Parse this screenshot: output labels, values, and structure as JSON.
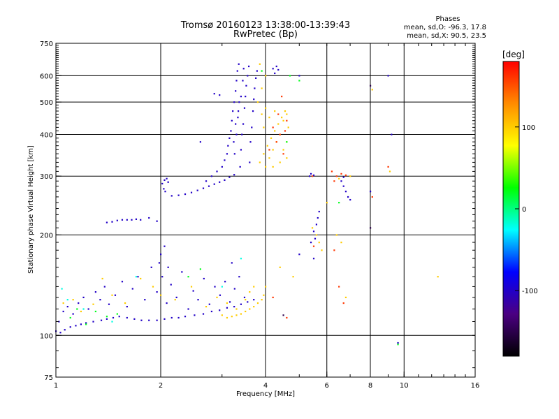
{
  "header": {
    "title_line1": "Tromsø 20160123 13:38:00-13:39:43",
    "title_line2": "RwPretec (Bp)"
  },
  "phases": {
    "title": "Phases",
    "line_o": "mean, sd,O: -96.3, 17.8",
    "line_x": "mean, sd,X:  90.5, 23.5"
  },
  "colorbar": {
    "unit": "[deg]",
    "range": [
      -180,
      180
    ],
    "ticks": [
      {
        "value": 100,
        "label": "100"
      },
      {
        "value": 0,
        "label": "0"
      },
      {
        "value": -100,
        "label": "-100"
      }
    ],
    "colors": [
      "#000000",
      "#4b0082",
      "#0000ff",
      "#00ffff",
      "#00ff00",
      "#ffff00",
      "#ff8c00",
      "#ff0000"
    ]
  },
  "chart_data": {
    "type": "scatter",
    "title": "Tromsø 20160123 13:38:00-13:39:43",
    "subtitle": "RwPretec (Bp)",
    "xlabel": "Frequency [MHz]",
    "ylabel": "Stationary phase Virtual Height [km]",
    "x_scale": "log",
    "y_scale": "log",
    "xlim": [
      1,
      16
    ],
    "ylim": [
      75,
      750
    ],
    "x_ticks": [
      {
        "value": 1,
        "label": "1"
      },
      {
        "value": 2,
        "label": "2"
      },
      {
        "value": 4,
        "label": "4"
      },
      {
        "value": 6,
        "label": "6"
      },
      {
        "value": 8,
        "label": "8"
      },
      {
        "value": 10,
        "label": "10"
      },
      {
        "value": 16,
        "label": "16"
      }
    ],
    "y_ticks": [
      {
        "value": 75,
        "label": "75"
      },
      {
        "value": 100,
        "label": "100"
      },
      {
        "value": 200,
        "label": "200"
      },
      {
        "value": 300,
        "label": "300"
      },
      {
        "value": 400,
        "label": "400"
      },
      {
        "value": 500,
        "label": "500"
      },
      {
        "value": 600,
        "label": "600"
      },
      {
        "value": 750,
        "label": "750"
      }
    ],
    "x_grid": [
      2,
      4,
      6,
      8,
      10
    ],
    "y_grid": [
      100,
      200,
      300,
      400,
      500,
      600
    ],
    "color_scale": "phase [deg]",
    "points": [
      [
        1.0,
        103,
        -100
      ],
      [
        1.03,
        102,
        -100
      ],
      [
        1.06,
        104,
        -100
      ],
      [
        1.1,
        106,
        -100
      ],
      [
        1.14,
        107,
        -100
      ],
      [
        1.18,
        108,
        -100
      ],
      [
        1.22,
        109,
        -100
      ],
      [
        1.28,
        110,
        -100
      ],
      [
        1.35,
        111,
        -100
      ],
      [
        1.4,
        112,
        -100
      ],
      [
        1.46,
        113,
        -100
      ],
      [
        1.52,
        114,
        -100
      ],
      [
        1.6,
        113,
        -100
      ],
      [
        1.68,
        112,
        -100
      ],
      [
        1.76,
        111,
        -100
      ],
      [
        1.85,
        111,
        -100
      ],
      [
        1.95,
        111,
        -100
      ],
      [
        2.05,
        112,
        -100
      ],
      [
        2.15,
        113,
        -100
      ],
      [
        2.25,
        113,
        -100
      ],
      [
        2.35,
        114,
        -100
      ],
      [
        2.5,
        115,
        -100
      ],
      [
        2.65,
        116,
        -100
      ],
      [
        2.8,
        118,
        -100
      ],
      [
        2.95,
        119,
        -100
      ],
      [
        3.1,
        121,
        -100
      ],
      [
        3.25,
        122,
        -100
      ],
      [
        3.4,
        124,
        -100
      ],
      [
        3.55,
        126,
        -100
      ],
      [
        3.7,
        128,
        -100
      ],
      [
        1.02,
        110,
        -100
      ],
      [
        1.05,
        118,
        -100
      ],
      [
        1.08,
        122,
        -100
      ],
      [
        1.12,
        116,
        -100
      ],
      [
        1.16,
        125,
        -100
      ],
      [
        1.2,
        130,
        -100
      ],
      [
        1.24,
        120,
        -100
      ],
      [
        1.3,
        135,
        -100
      ],
      [
        1.34,
        128,
        -100
      ],
      [
        1.38,
        140,
        -100
      ],
      [
        1.42,
        124,
        -100
      ],
      [
        1.48,
        132,
        -100
      ],
      [
        1.55,
        145,
        -100
      ],
      [
        1.6,
        122,
        -100
      ],
      [
        1.66,
        138,
        -100
      ],
      [
        1.72,
        150,
        -100
      ],
      [
        1.8,
        128,
        -100
      ],
      [
        1.88,
        160,
        -100
      ],
      [
        1.95,
        135,
        -100
      ],
      [
        2.02,
        150,
        -100
      ],
      [
        2.08,
        125,
        -100
      ],
      [
        2.14,
        142,
        -100
      ],
      [
        2.22,
        130,
        -100
      ],
      [
        2.3,
        155,
        -100
      ],
      [
        2.4,
        120,
        -100
      ],
      [
        2.48,
        136,
        -100
      ],
      [
        2.56,
        128,
        -100
      ],
      [
        2.66,
        148,
        -100
      ],
      [
        2.76,
        124,
        -100
      ],
      [
        2.86,
        140,
        -100
      ],
      [
        2.96,
        132,
        -100
      ],
      [
        3.06,
        145,
        -100
      ],
      [
        3.16,
        126,
        -100
      ],
      [
        3.26,
        138,
        -100
      ],
      [
        3.36,
        150,
        -100
      ],
      [
        3.48,
        130,
        -100
      ],
      [
        3.2,
        165,
        -100
      ],
      [
        2.0,
        175,
        -100
      ],
      [
        2.05,
        185,
        -100
      ],
      [
        1.98,
        165,
        -100
      ],
      [
        2.1,
        160,
        -100
      ],
      [
        1.05,
        125,
        100
      ],
      [
        1.12,
        128,
        100
      ],
      [
        1.18,
        118,
        100
      ],
      [
        1.28,
        124,
        100
      ],
      [
        1.36,
        148,
        100
      ],
      [
        1.45,
        132,
        100
      ],
      [
        1.58,
        125,
        100
      ],
      [
        1.75,
        148,
        100
      ],
      [
        1.9,
        140,
        100
      ],
      [
        2.0,
        132,
        100
      ],
      [
        2.2,
        128,
        100
      ],
      [
        2.45,
        140,
        100
      ],
      [
        2.7,
        122,
        100
      ],
      [
        2.9,
        130,
        100
      ],
      [
        3.0,
        115,
        100
      ],
      [
        3.1,
        113,
        100
      ],
      [
        3.2,
        114,
        100
      ],
      [
        3.3,
        115,
        100
      ],
      [
        3.4,
        116,
        100
      ],
      [
        3.5,
        118,
        100
      ],
      [
        3.6,
        120,
        100
      ],
      [
        3.7,
        122,
        100
      ],
      [
        3.8,
        125,
        100
      ],
      [
        3.9,
        128,
        100
      ],
      [
        3.95,
        132,
        100
      ],
      [
        3.6,
        135,
        100
      ],
      [
        3.5,
        128,
        100
      ],
      [
        3.3,
        120,
        100
      ],
      [
        3.1,
        125,
        100
      ],
      [
        3.7,
        140,
        100
      ],
      [
        1.1,
        113,
        20
      ],
      [
        1.15,
        120,
        20
      ],
      [
        1.22,
        108,
        20
      ],
      [
        1.3,
        118,
        20
      ],
      [
        1.4,
        114,
        20
      ],
      [
        1.5,
        116,
        20
      ],
      [
        2.4,
        150,
        20
      ],
      [
        2.6,
        158,
        20
      ],
      [
        1.04,
        138,
        -20
      ],
      [
        1.08,
        128,
        -20
      ],
      [
        1.2,
        120,
        -20
      ],
      [
        1.45,
        110,
        -20
      ],
      [
        1.7,
        150,
        -20
      ],
      [
        3.0,
        140,
        -20
      ],
      [
        3.4,
        170,
        -20
      ],
      [
        1.4,
        218,
        -100
      ],
      [
        1.45,
        219,
        -100
      ],
      [
        1.5,
        221,
        -100
      ],
      [
        1.55,
        222,
        -100
      ],
      [
        1.6,
        222,
        -100
      ],
      [
        1.65,
        222,
        -100
      ],
      [
        1.7,
        223,
        -100
      ],
      [
        1.75,
        222,
        -100
      ],
      [
        1.85,
        225,
        -100
      ],
      [
        1.95,
        220,
        -100
      ],
      [
        2.02,
        285,
        -100
      ],
      [
        2.05,
        292,
        -100
      ],
      [
        2.08,
        295,
        -100
      ],
      [
        2.1,
        288,
        -100
      ],
      [
        2.04,
        275,
        -100
      ],
      [
        2.06,
        270,
        -100
      ],
      [
        2.15,
        262,
        -100
      ],
      [
        2.25,
        263,
        -100
      ],
      [
        2.35,
        265,
        -100
      ],
      [
        2.45,
        268,
        -100
      ],
      [
        2.55,
        272,
        -100
      ],
      [
        2.65,
        276,
        -100
      ],
      [
        2.75,
        280,
        -100
      ],
      [
        2.85,
        284,
        -100
      ],
      [
        2.95,
        288,
        -100
      ],
      [
        3.05,
        292,
        -100
      ],
      [
        3.15,
        298,
        -100
      ],
      [
        3.25,
        303,
        -100
      ],
      [
        2.7,
        290,
        -100
      ],
      [
        2.8,
        300,
        -100
      ],
      [
        2.9,
        310,
        -100
      ],
      [
        3.0,
        320,
        -100
      ],
      [
        3.05,
        335,
        -100
      ],
      [
        3.1,
        350,
        -100
      ],
      [
        3.12,
        370,
        -100
      ],
      [
        3.15,
        390,
        -100
      ],
      [
        3.18,
        410,
        -100
      ],
      [
        3.2,
        440,
        -100
      ],
      [
        3.22,
        470,
        -100
      ],
      [
        3.25,
        500,
        -100
      ],
      [
        3.28,
        540,
        -100
      ],
      [
        3.3,
        580,
        -100
      ],
      [
        3.32,
        620,
        -100
      ],
      [
        3.35,
        650,
        -100
      ],
      [
        3.38,
        320,
        -100
      ],
      [
        3.4,
        360,
        -100
      ],
      [
        3.42,
        400,
        -100
      ],
      [
        3.45,
        430,
        -100
      ],
      [
        3.48,
        480,
        -100
      ],
      [
        3.5,
        520,
        -100
      ],
      [
        3.52,
        560,
        -100
      ],
      [
        3.55,
        600,
        -100
      ],
      [
        3.58,
        640,
        -100
      ],
      [
        3.6,
        330,
        -100
      ],
      [
        3.62,
        380,
        -100
      ],
      [
        3.65,
        420,
        -100
      ],
      [
        3.68,
        470,
        -100
      ],
      [
        3.7,
        510,
        -100
      ],
      [
        3.72,
        550,
        -100
      ],
      [
        3.75,
        590,
        -100
      ],
      [
        3.78,
        620,
        -100
      ],
      [
        3.26,
        350,
        -100
      ],
      [
        3.3,
        400,
        -100
      ],
      [
        3.33,
        450,
        -100
      ],
      [
        3.36,
        500,
        -100
      ],
      [
        3.24,
        380,
        -100
      ],
      [
        3.28,
        430,
        -100
      ],
      [
        3.34,
        470,
        -100
      ],
      [
        3.4,
        520,
        -100
      ],
      [
        3.44,
        580,
        -100
      ],
      [
        3.46,
        630,
        -100
      ],
      [
        4.2,
        630,
        -100
      ],
      [
        4.3,
        640,
        -100
      ],
      [
        4.35,
        625,
        -100
      ],
      [
        4.25,
        610,
        -100
      ],
      [
        2.85,
        530,
        -100
      ],
      [
        2.95,
        525,
        -100
      ],
      [
        2.6,
        380,
        -100
      ],
      [
        5.0,
        600,
        -100
      ],
      [
        3.85,
        330,
        100
      ],
      [
        3.95,
        350,
        100
      ],
      [
        4.05,
        370,
        100
      ],
      [
        4.15,
        390,
        100
      ],
      [
        4.25,
        410,
        100
      ],
      [
        4.35,
        430,
        100
      ],
      [
        4.45,
        450,
        100
      ],
      [
        4.55,
        470,
        100
      ],
      [
        4.65,
        420,
        100
      ],
      [
        4.0,
        320,
        100
      ],
      [
        4.1,
        340,
        100
      ],
      [
        4.2,
        360,
        100
      ],
      [
        4.3,
        380,
        100
      ],
      [
        4.4,
        400,
        100
      ],
      [
        4.5,
        440,
        100
      ],
      [
        4.6,
        460,
        100
      ],
      [
        3.8,
        500,
        100
      ],
      [
        3.9,
        550,
        100
      ],
      [
        4.0,
        600,
        100
      ],
      [
        3.85,
        650,
        100
      ],
      [
        3.9,
        460,
        100
      ],
      [
        4.0,
        480,
        100
      ],
      [
        4.2,
        320,
        100
      ],
      [
        4.4,
        330,
        100
      ],
      [
        4.6,
        340,
        100
      ],
      [
        3.95,
        420,
        100
      ],
      [
        4.1,
        450,
        100
      ],
      [
        4.25,
        470,
        100
      ],
      [
        4.5,
        360,
        100
      ],
      [
        4.6,
        380,
        100
      ],
      [
        4.2,
        420,
        160
      ],
      [
        4.3,
        380,
        160
      ],
      [
        4.4,
        400,
        160
      ],
      [
        4.5,
        350,
        160
      ],
      [
        4.6,
        440,
        160
      ],
      [
        4.1,
        360,
        160
      ],
      [
        4.35,
        460,
        160
      ],
      [
        4.55,
        410,
        160
      ],
      [
        4.45,
        520,
        160
      ],
      [
        4.7,
        600,
        20
      ],
      [
        4.6,
        380,
        20
      ],
      [
        5.0,
        580,
        20
      ],
      [
        3.9,
        620,
        20
      ],
      [
        5.35,
        300,
        -100
      ],
      [
        5.4,
        305,
        -100
      ],
      [
        5.5,
        302,
        -100
      ],
      [
        5.45,
        300,
        160
      ],
      [
        5.4,
        190,
        -100
      ],
      [
        5.5,
        205,
        -100
      ],
      [
        5.6,
        215,
        -100
      ],
      [
        5.65,
        225,
        -100
      ],
      [
        5.7,
        235,
        -100
      ],
      [
        5.55,
        195,
        -100
      ],
      [
        5.45,
        210,
        100
      ],
      [
        5.6,
        200,
        100
      ],
      [
        5.7,
        190,
        100
      ],
      [
        5.8,
        180,
        100
      ],
      [
        5.5,
        185,
        160
      ],
      [
        6.2,
        310,
        160
      ],
      [
        6.4,
        300,
        160
      ],
      [
        6.6,
        305,
        160
      ],
      [
        6.8,
        302,
        160
      ],
      [
        7.0,
        300,
        100
      ],
      [
        6.5,
        295,
        100
      ],
      [
        6.3,
        290,
        160
      ],
      [
        6.7,
        298,
        -100
      ],
      [
        6.6,
        290,
        -100
      ],
      [
        6.7,
        280,
        -100
      ],
      [
        6.8,
        270,
        -100
      ],
      [
        6.9,
        260,
        -100
      ],
      [
        7.0,
        255,
        -100
      ],
      [
        6.5,
        250,
        20
      ],
      [
        6.0,
        250,
        100
      ],
      [
        6.4,
        200,
        100
      ],
      [
        6.6,
        190,
        100
      ],
      [
        6.3,
        180,
        160
      ],
      [
        6.5,
        140,
        160
      ],
      [
        6.8,
        130,
        100
      ],
      [
        6.7,
        125,
        160
      ],
      [
        8.0,
        560,
        -150
      ],
      [
        8.1,
        545,
        100
      ],
      [
        8.0,
        270,
        -100
      ],
      [
        8.1,
        260,
        160
      ],
      [
        8.0,
        210,
        -150
      ],
      [
        9.0,
        600,
        -100
      ],
      [
        9.2,
        400,
        -100
      ],
      [
        9.0,
        320,
        160
      ],
      [
        9.1,
        310,
        100
      ],
      [
        9.6,
        95,
        -100
      ],
      [
        9.6,
        94,
        20
      ],
      [
        12.5,
        150,
        100
      ],
      [
        5.5,
        170,
        -100
      ],
      [
        5.0,
        175,
        -100
      ],
      [
        4.8,
        150,
        100
      ],
      [
        4.5,
        115,
        -150
      ],
      [
        4.6,
        113,
        160
      ],
      [
        4.4,
        160,
        100
      ],
      [
        4.2,
        130,
        160
      ],
      [
        4.0,
        140,
        100
      ]
    ]
  }
}
